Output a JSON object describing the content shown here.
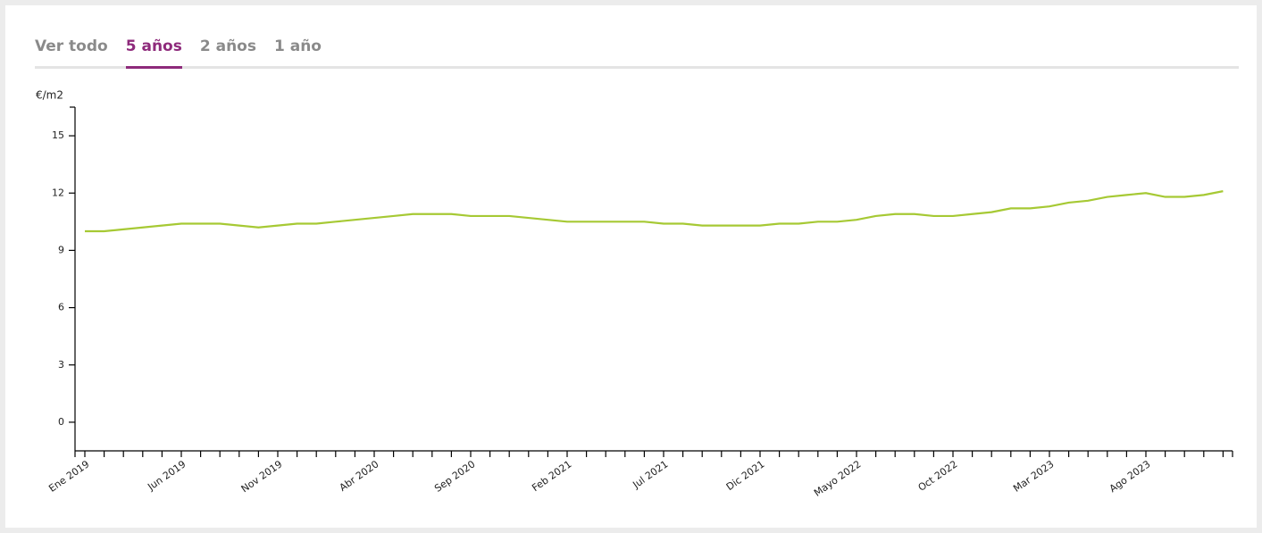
{
  "tabs": [
    "Ver todo",
    "5 años",
    "2 años",
    "1 año"
  ],
  "active_tab": 1,
  "chart_data": {
    "type": "line",
    "y_label": "€/m2",
    "categories": [
      "Ene 2019",
      null,
      null,
      null,
      null,
      "Jun 2019",
      null,
      null,
      null,
      null,
      "Nov 2019",
      null,
      null,
      null,
      null,
      "Abr 2020",
      null,
      null,
      null,
      null,
      "Sep 2020",
      null,
      null,
      null,
      null,
      "Feb 2021",
      null,
      null,
      null,
      null,
      "Jul 2021",
      null,
      null,
      null,
      null,
      "Dic 2021",
      null,
      null,
      null,
      null,
      "Mayo 2022",
      null,
      null,
      null,
      null,
      "Oct 2022",
      null,
      null,
      null,
      null,
      "Mar 2023",
      null,
      null,
      null,
      null,
      "Ago 2023",
      null,
      null,
      null,
      null
    ],
    "series": [
      {
        "color": "#a6c934",
        "values": [
          10.0,
          10.0,
          10.1,
          10.2,
          10.3,
          10.4,
          10.4,
          10.4,
          10.3,
          10.2,
          10.3,
          10.4,
          10.4,
          10.5,
          10.6,
          10.7,
          10.8,
          10.9,
          10.9,
          10.9,
          10.8,
          10.8,
          10.8,
          10.7,
          10.6,
          10.5,
          10.5,
          10.5,
          10.5,
          10.5,
          10.4,
          10.4,
          10.3,
          10.3,
          10.3,
          10.3,
          10.4,
          10.4,
          10.5,
          10.5,
          10.6,
          10.8,
          10.9,
          10.9,
          10.8,
          10.8,
          10.9,
          11.0,
          11.2,
          11.2,
          11.3,
          11.5,
          11.6,
          11.8,
          11.9,
          12.0,
          11.8,
          11.8,
          11.9,
          12.1
        ]
      }
    ],
    "ylim": [
      -1.5,
      16.5
    ],
    "yticks": [
      0,
      3,
      6,
      9,
      12,
      15
    ]
  }
}
